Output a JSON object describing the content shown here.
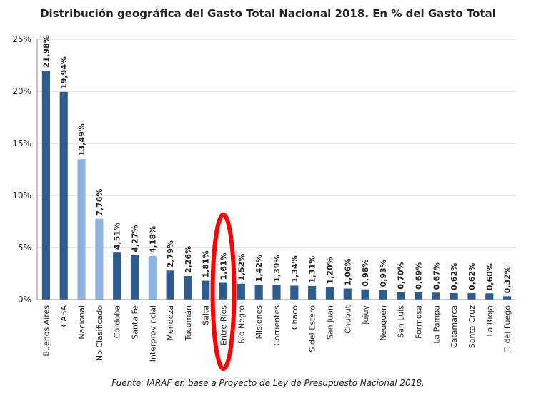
{
  "chart_data": {
    "type": "bar",
    "title": "Distribución geográfica del Gasto Total Nacional 2018. En % del Gasto Total",
    "source": "Fuente: IARAF en base a Proyecto de Ley de Presupuesto Nacional 2018.",
    "xlabel": "",
    "ylabel": "",
    "ylim": [
      0,
      25
    ],
    "yticks": [
      0,
      5,
      10,
      15,
      20,
      25
    ],
    "ytick_labels": [
      "0%",
      "5%",
      "10%",
      "15%",
      "20%",
      "25%"
    ],
    "grid": true,
    "highlighted_category": "Entre Ríos",
    "colors": {
      "dark": "#2e5c8f",
      "light": "#8db4e2",
      "highlight": "#ff0000",
      "grid": "#d0d0d0"
    },
    "categories": [
      "Buenos Aires",
      "CABA",
      "Nacional",
      "No Clasificado",
      "Córdoba",
      "Santa Fe",
      "Interprovincial",
      "Mendoza",
      "Tucumán",
      "Salta",
      "Entre Ríos",
      "Río Negro",
      "Misiones",
      "Corrientes",
      "Chaco",
      "S.del Estero",
      "San Juan",
      "Chubut",
      "Jujuy",
      "Neuquén",
      "San Luis",
      "Formosa",
      "La Pampa",
      "Catamarca",
      "Santa Cruz",
      "La Rioja",
      "T. del Fuego"
    ],
    "values": [
      21.98,
      19.94,
      13.49,
      7.76,
      4.51,
      4.27,
      4.18,
      2.79,
      2.26,
      1.81,
      1.61,
      1.52,
      1.42,
      1.39,
      1.34,
      1.31,
      1.2,
      1.06,
      0.98,
      0.93,
      0.7,
      0.69,
      0.67,
      0.62,
      0.62,
      0.6,
      0.32
    ],
    "value_labels": [
      "21,98%",
      "19,94%",
      "13,49%",
      "7,76%",
      "4,51%",
      "4,27%",
      "4,18%",
      "2,79%",
      "2,26%",
      "1,81%",
      "1,61%",
      "1,52%",
      "1,42%",
      "1,39%",
      "1,34%",
      "1,31%",
      "1,20%",
      "1,06%",
      "0,98%",
      "0,93%",
      "0,70%",
      "0,69%",
      "0,67%",
      "0,62%",
      "0,62%",
      "0,60%",
      "0,32%"
    ],
    "bar_shade": [
      "dark",
      "dark",
      "light",
      "light",
      "dark",
      "dark",
      "light",
      "dark",
      "dark",
      "dark",
      "dark",
      "dark",
      "dark",
      "dark",
      "dark",
      "dark",
      "dark",
      "dark",
      "dark",
      "dark",
      "dark",
      "dark",
      "dark",
      "dark",
      "dark",
      "dark",
      "dark"
    ]
  }
}
